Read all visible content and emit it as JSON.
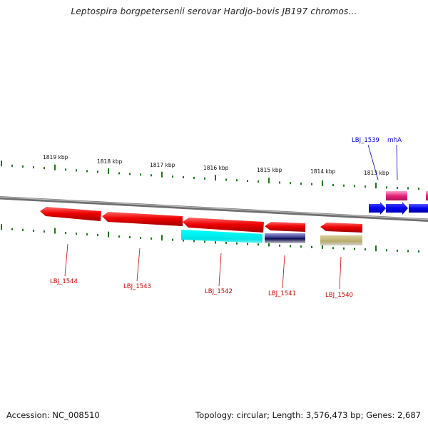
{
  "title": "Leptospira borgpetersenii serovar Hardjo-bovis JB197 chromos...",
  "scale_labels": [
    "1819 kbp",
    "1818 kbp",
    "1817 kbp",
    "1816 kbp",
    "1815 kbp",
    "1814 kbp",
    "1813 kbp"
  ],
  "genes_below": [
    "LBJ_1544",
    "LBJ_1543",
    "LBJ_1542",
    "LBJ_1541",
    "LBJ_1540"
  ],
  "genes_above": [
    "LBJ_1539",
    "rnhA"
  ],
  "footer": {
    "accession": "Accession: NC_008510",
    "summary": "Topology: circular; Length: 3,576,473 bp; Genes: 2,687"
  },
  "colors": {
    "cds_red": "#ee0000",
    "cyan_feature": "#00e5e5",
    "navy_feature": "#1a1a6e",
    "khaki_feature": "#b8ad6e",
    "pink_feature": "#e8237a",
    "blue_cds": "#0000ee",
    "tick_green": "#1a7a1a",
    "backbone_grey": "#888888"
  },
  "icons": [
    "arrow-left-icon",
    "arrow-right-icon"
  ]
}
